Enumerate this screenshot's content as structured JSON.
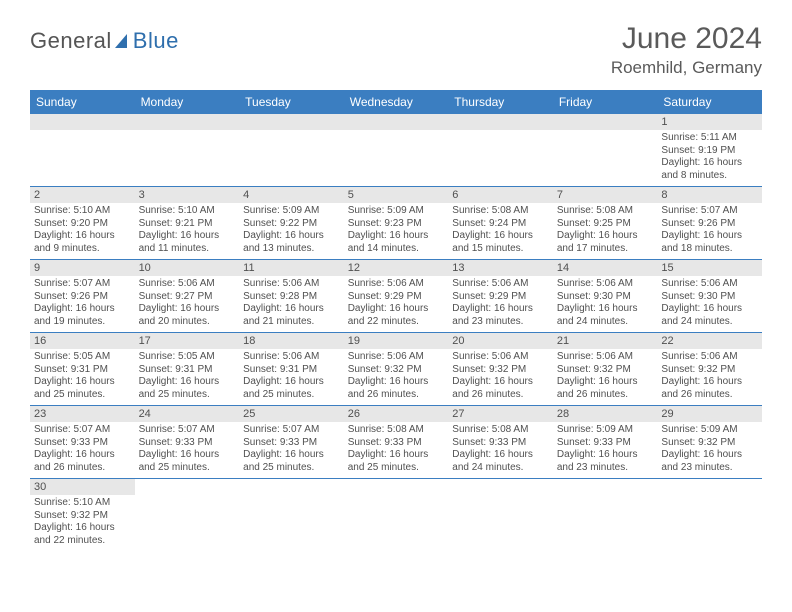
{
  "logo": {
    "word1": "General",
    "word2": "Blue"
  },
  "title": "June 2024",
  "location": "Roemhild, Germany",
  "colors": {
    "header_bg": "#3b7ec1",
    "header_text": "#ffffff",
    "daynum_bg": "#e7e7e7",
    "body_text": "#505050",
    "rule": "#3b7ec1",
    "background": "#ffffff"
  },
  "typography": {
    "title_fontsize": 30,
    "location_fontsize": 17,
    "dow_fontsize": 12,
    "daynum_fontsize": 11,
    "body_fontsize": 10
  },
  "dow": [
    "Sunday",
    "Monday",
    "Tuesday",
    "Wednesday",
    "Thursday",
    "Friday",
    "Saturday"
  ],
  "weeks": [
    [
      null,
      null,
      null,
      null,
      null,
      null,
      {
        "n": "1",
        "sr": "Sunrise: 5:11 AM",
        "ss": "Sunset: 9:19 PM",
        "d1": "Daylight: 16 hours",
        "d2": "and 8 minutes."
      }
    ],
    [
      {
        "n": "2",
        "sr": "Sunrise: 5:10 AM",
        "ss": "Sunset: 9:20 PM",
        "d1": "Daylight: 16 hours",
        "d2": "and 9 minutes."
      },
      {
        "n": "3",
        "sr": "Sunrise: 5:10 AM",
        "ss": "Sunset: 9:21 PM",
        "d1": "Daylight: 16 hours",
        "d2": "and 11 minutes."
      },
      {
        "n": "4",
        "sr": "Sunrise: 5:09 AM",
        "ss": "Sunset: 9:22 PM",
        "d1": "Daylight: 16 hours",
        "d2": "and 13 minutes."
      },
      {
        "n": "5",
        "sr": "Sunrise: 5:09 AM",
        "ss": "Sunset: 9:23 PM",
        "d1": "Daylight: 16 hours",
        "d2": "and 14 minutes."
      },
      {
        "n": "6",
        "sr": "Sunrise: 5:08 AM",
        "ss": "Sunset: 9:24 PM",
        "d1": "Daylight: 16 hours",
        "d2": "and 15 minutes."
      },
      {
        "n": "7",
        "sr": "Sunrise: 5:08 AM",
        "ss": "Sunset: 9:25 PM",
        "d1": "Daylight: 16 hours",
        "d2": "and 17 minutes."
      },
      {
        "n": "8",
        "sr": "Sunrise: 5:07 AM",
        "ss": "Sunset: 9:26 PM",
        "d1": "Daylight: 16 hours",
        "d2": "and 18 minutes."
      }
    ],
    [
      {
        "n": "9",
        "sr": "Sunrise: 5:07 AM",
        "ss": "Sunset: 9:26 PM",
        "d1": "Daylight: 16 hours",
        "d2": "and 19 minutes."
      },
      {
        "n": "10",
        "sr": "Sunrise: 5:06 AM",
        "ss": "Sunset: 9:27 PM",
        "d1": "Daylight: 16 hours",
        "d2": "and 20 minutes."
      },
      {
        "n": "11",
        "sr": "Sunrise: 5:06 AM",
        "ss": "Sunset: 9:28 PM",
        "d1": "Daylight: 16 hours",
        "d2": "and 21 minutes."
      },
      {
        "n": "12",
        "sr": "Sunrise: 5:06 AM",
        "ss": "Sunset: 9:29 PM",
        "d1": "Daylight: 16 hours",
        "d2": "and 22 minutes."
      },
      {
        "n": "13",
        "sr": "Sunrise: 5:06 AM",
        "ss": "Sunset: 9:29 PM",
        "d1": "Daylight: 16 hours",
        "d2": "and 23 minutes."
      },
      {
        "n": "14",
        "sr": "Sunrise: 5:06 AM",
        "ss": "Sunset: 9:30 PM",
        "d1": "Daylight: 16 hours",
        "d2": "and 24 minutes."
      },
      {
        "n": "15",
        "sr": "Sunrise: 5:06 AM",
        "ss": "Sunset: 9:30 PM",
        "d1": "Daylight: 16 hours",
        "d2": "and 24 minutes."
      }
    ],
    [
      {
        "n": "16",
        "sr": "Sunrise: 5:05 AM",
        "ss": "Sunset: 9:31 PM",
        "d1": "Daylight: 16 hours",
        "d2": "and 25 minutes."
      },
      {
        "n": "17",
        "sr": "Sunrise: 5:05 AM",
        "ss": "Sunset: 9:31 PM",
        "d1": "Daylight: 16 hours",
        "d2": "and 25 minutes."
      },
      {
        "n": "18",
        "sr": "Sunrise: 5:06 AM",
        "ss": "Sunset: 9:31 PM",
        "d1": "Daylight: 16 hours",
        "d2": "and 25 minutes."
      },
      {
        "n": "19",
        "sr": "Sunrise: 5:06 AM",
        "ss": "Sunset: 9:32 PM",
        "d1": "Daylight: 16 hours",
        "d2": "and 26 minutes."
      },
      {
        "n": "20",
        "sr": "Sunrise: 5:06 AM",
        "ss": "Sunset: 9:32 PM",
        "d1": "Daylight: 16 hours",
        "d2": "and 26 minutes."
      },
      {
        "n": "21",
        "sr": "Sunrise: 5:06 AM",
        "ss": "Sunset: 9:32 PM",
        "d1": "Daylight: 16 hours",
        "d2": "and 26 minutes."
      },
      {
        "n": "22",
        "sr": "Sunrise: 5:06 AM",
        "ss": "Sunset: 9:32 PM",
        "d1": "Daylight: 16 hours",
        "d2": "and 26 minutes."
      }
    ],
    [
      {
        "n": "23",
        "sr": "Sunrise: 5:07 AM",
        "ss": "Sunset: 9:33 PM",
        "d1": "Daylight: 16 hours",
        "d2": "and 26 minutes."
      },
      {
        "n": "24",
        "sr": "Sunrise: 5:07 AM",
        "ss": "Sunset: 9:33 PM",
        "d1": "Daylight: 16 hours",
        "d2": "and 25 minutes."
      },
      {
        "n": "25",
        "sr": "Sunrise: 5:07 AM",
        "ss": "Sunset: 9:33 PM",
        "d1": "Daylight: 16 hours",
        "d2": "and 25 minutes."
      },
      {
        "n": "26",
        "sr": "Sunrise: 5:08 AM",
        "ss": "Sunset: 9:33 PM",
        "d1": "Daylight: 16 hours",
        "d2": "and 25 minutes."
      },
      {
        "n": "27",
        "sr": "Sunrise: 5:08 AM",
        "ss": "Sunset: 9:33 PM",
        "d1": "Daylight: 16 hours",
        "d2": "and 24 minutes."
      },
      {
        "n": "28",
        "sr": "Sunrise: 5:09 AM",
        "ss": "Sunset: 9:33 PM",
        "d1": "Daylight: 16 hours",
        "d2": "and 23 minutes."
      },
      {
        "n": "29",
        "sr": "Sunrise: 5:09 AM",
        "ss": "Sunset: 9:32 PM",
        "d1": "Daylight: 16 hours",
        "d2": "and 23 minutes."
      }
    ],
    [
      {
        "n": "30",
        "sr": "Sunrise: 5:10 AM",
        "ss": "Sunset: 9:32 PM",
        "d1": "Daylight: 16 hours",
        "d2": "and 22 minutes."
      },
      null,
      null,
      null,
      null,
      null,
      null
    ]
  ]
}
